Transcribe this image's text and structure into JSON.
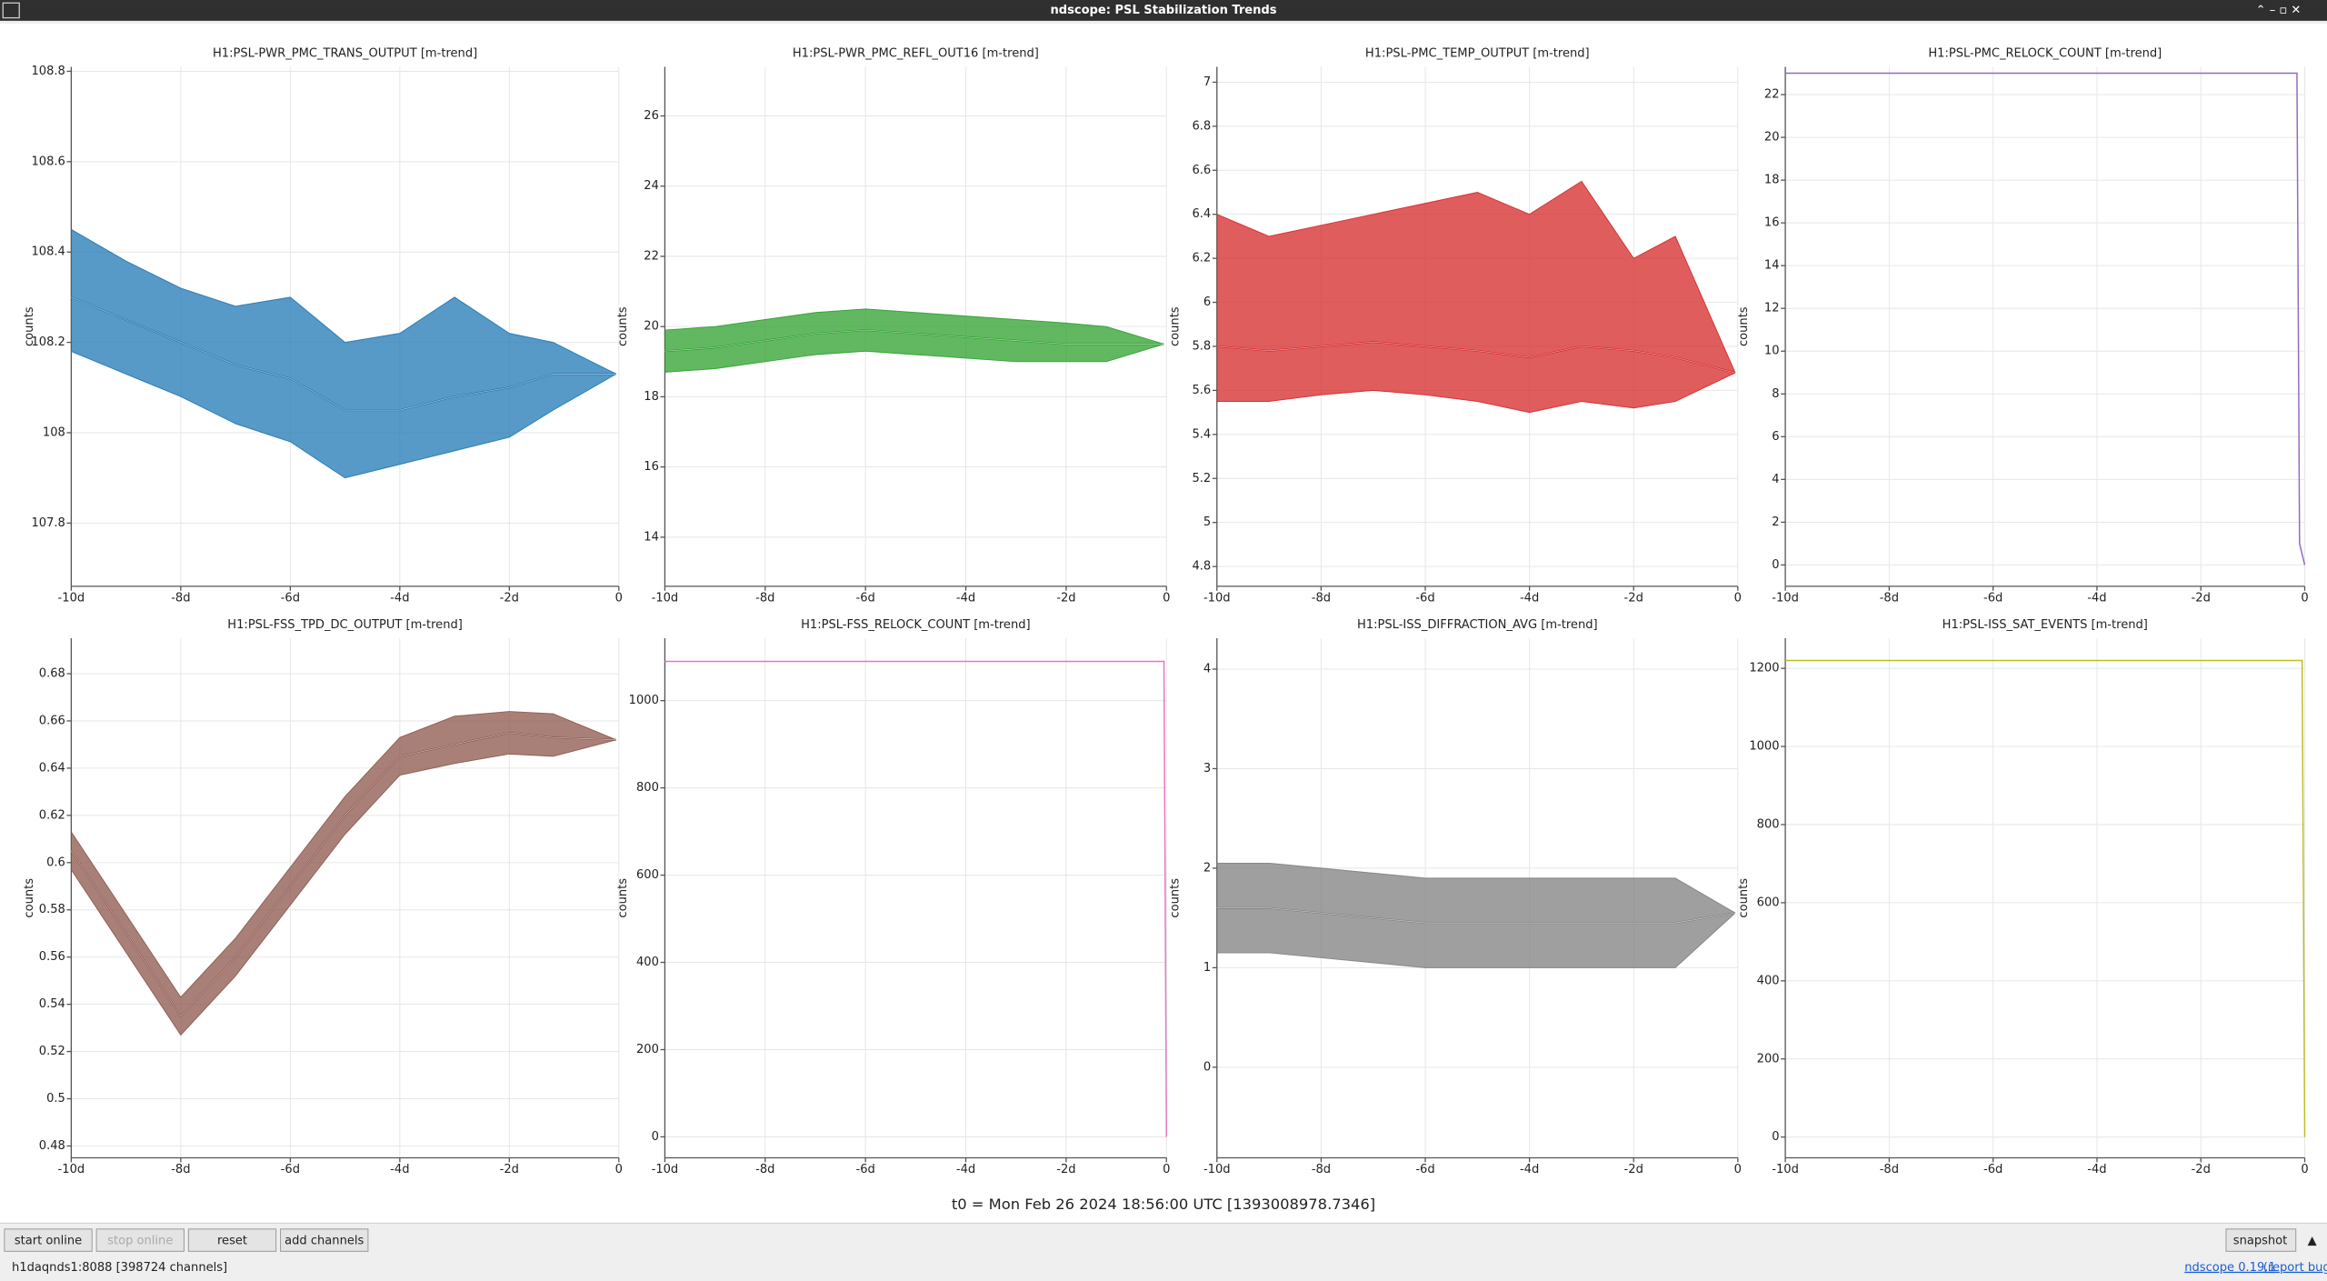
{
  "window_title": "ndscope: PSL Stabilization Trends",
  "ylabel": "counts",
  "xlim": [
    -10,
    0
  ],
  "xticks": [
    {
      "value": -10,
      "label": "-10d"
    },
    {
      "value": -8,
      "label": "-8d"
    },
    {
      "value": -6,
      "label": "-6d"
    },
    {
      "value": -4,
      "label": "-4d"
    },
    {
      "value": -2,
      "label": "-2d"
    },
    0
  ],
  "plots": [
    {
      "title": "H1:PSL-PWR_PMC_TRANS_OUTPUT [m-trend]",
      "color": "#1f77b4",
      "ylim": [
        107.66,
        108.81
      ],
      "yticks": [
        107.8,
        108,
        108.2,
        108.4,
        108.6,
        108.8
      ],
      "x": [
        -10,
        -9,
        -8,
        -7,
        -6,
        -5,
        -4,
        -3,
        -2,
        -1.2,
        -0.05
      ],
      "values": [
        108.3,
        108.25,
        108.2,
        108.15,
        108.12,
        108.05,
        108.05,
        108.08,
        108.1,
        108.13,
        108.13
      ],
      "min": [
        108.18,
        108.13,
        108.08,
        108.02,
        107.98,
        107.9,
        107.93,
        107.96,
        107.99,
        108.05,
        108.13
      ],
      "max": [
        108.45,
        108.38,
        108.32,
        108.28,
        108.3,
        108.2,
        108.22,
        108.3,
        108.22,
        108.2,
        108.13
      ]
    },
    {
      "title": "H1:PSL-PWR_PMC_REFL_OUT16 [m-trend]",
      "color": "#2ca02c",
      "ylim": [
        12.6,
        27.4
      ],
      "yticks": [
        14,
        16,
        18,
        20,
        22,
        24,
        26
      ],
      "x": [
        -10,
        -9,
        -8,
        -7,
        -6,
        -5,
        -4,
        -3,
        -2,
        -1.2,
        -0.05
      ],
      "values": [
        19.3,
        19.4,
        19.6,
        19.8,
        19.9,
        19.8,
        19.7,
        19.6,
        19.5,
        19.5,
        19.5
      ],
      "min": [
        18.7,
        18.8,
        19,
        19.2,
        19.3,
        19.2,
        19.1,
        19,
        19,
        19,
        19.5
      ],
      "max": [
        19.9,
        20,
        20.2,
        20.4,
        20.5,
        20.4,
        20.3,
        20.2,
        20.1,
        20,
        19.5
      ]
    },
    {
      "title": "H1:PSL-PMC_TEMP_OUTPUT [m-trend]",
      "color": "#d62728",
      "ylim": [
        4.71,
        7.07
      ],
      "yticks": [
        4.8,
        5,
        5.2,
        5.4,
        5.6,
        5.8,
        6,
        6.2,
        6.4,
        6.6,
        6.8,
        7
      ],
      "x": [
        -10,
        -9,
        -8,
        -7,
        -6,
        -5,
        -4,
        -3,
        -2,
        -1.2,
        -0.05
      ],
      "values": [
        5.8,
        5.78,
        5.8,
        5.82,
        5.8,
        5.78,
        5.75,
        5.8,
        5.78,
        5.75,
        5.68
      ],
      "min": [
        5.55,
        5.55,
        5.58,
        5.6,
        5.58,
        5.55,
        5.5,
        5.55,
        5.52,
        5.55,
        5.68
      ],
      "max": [
        6.4,
        6.3,
        6.35,
        6.4,
        6.45,
        6.5,
        6.4,
        6.55,
        6.2,
        6.3,
        5.68
      ]
    },
    {
      "title": "H1:PSL-PMC_RELOCK_COUNT [m-trend]",
      "color": "#9467bd",
      "ylim": [
        -1,
        23.3
      ],
      "yticks": [
        0,
        2,
        4,
        6,
        8,
        10,
        12,
        14,
        16,
        18,
        20,
        22
      ],
      "x": [
        -10,
        -0.15,
        -0.1,
        0
      ],
      "values": [
        23,
        23,
        1,
        0
      ]
    },
    {
      "title": "H1:PSL-FSS_TPD_DC_OUTPUT [m-trend]",
      "color": "#8c564b",
      "ylim": [
        0.475,
        0.695
      ],
      "yticks": [
        0.48,
        0.5,
        0.52,
        0.54,
        0.56,
        0.58,
        0.6,
        0.62,
        0.64,
        0.66,
        0.68
      ],
      "x": [
        -10,
        -9,
        -8,
        -7,
        -6,
        -5,
        -4,
        -3,
        -2,
        -1.2,
        -0.05
      ],
      "values": [
        0.605,
        0.57,
        0.535,
        0.56,
        0.59,
        0.62,
        0.645,
        0.65,
        0.655,
        0.653,
        0.652
      ],
      "min": [
        0.597,
        0.562,
        0.527,
        0.552,
        0.582,
        0.612,
        0.637,
        0.642,
        0.646,
        0.645,
        0.652
      ],
      "max": [
        0.613,
        0.578,
        0.543,
        0.568,
        0.598,
        0.628,
        0.653,
        0.662,
        0.664,
        0.663,
        0.652
      ]
    },
    {
      "title": "H1:PSL-FSS_RELOCK_COUNT [m-trend]",
      "color": "#e377c2",
      "ylim": [
        -48,
        1143
      ],
      "yticks": [
        0,
        200,
        400,
        600,
        800,
        1000
      ],
      "x": [
        -10,
        -0.05,
        0
      ],
      "values": [
        1090,
        1090,
        0
      ]
    },
    {
      "title": "H1:PSL-ISS_DIFFRACTION_AVG [m-trend]",
      "color": "#7f7f7f",
      "ylim": [
        -0.91,
        4.31
      ],
      "yticks": [
        0,
        1,
        2,
        3,
        4
      ],
      "x": [
        -10,
        -9,
        -8,
        -7,
        -6,
        -5,
        -4,
        -3,
        -2,
        -1.2,
        -0.05
      ],
      "values": [
        1.6,
        1.6,
        1.55,
        1.5,
        1.45,
        1.45,
        1.45,
        1.45,
        1.45,
        1.45,
        1.55
      ],
      "min": [
        1.15,
        1.15,
        1.1,
        1.05,
        1,
        1,
        1,
        1,
        1,
        1,
        1.55
      ],
      "max": [
        2.05,
        2.05,
        2,
        1.95,
        1.9,
        1.9,
        1.9,
        1.9,
        1.9,
        1.9,
        1.55
      ]
    },
    {
      "title": "H1:PSL-ISS_SAT_EVENTS [m-trend]",
      "color": "#bcbd22",
      "ylim": [
        -53,
        1277
      ],
      "yticks": [
        0,
        200,
        400,
        600,
        800,
        1000,
        1200
      ],
      "x": [
        -10,
        -0.05,
        0
      ],
      "values": [
        1220,
        1220,
        0
      ]
    }
  ],
  "t0": "t0 = Mon Feb 26 2024 18:56:00 UTC [1393008978.7346]",
  "buttons": [
    "start online",
    "stop online",
    "reset",
    "add channels"
  ],
  "snapshot": "snapshot",
  "status": "h1daqnds1:8088  [398724 channels]",
  "version": "ndscope 0.19.1",
  "report": "(report bug)"
}
